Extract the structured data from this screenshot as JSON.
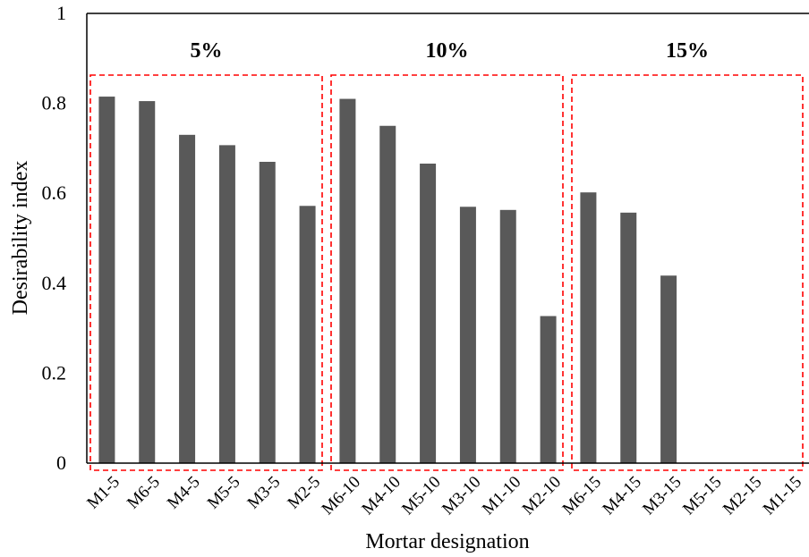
{
  "chart_data": {
    "type": "bar",
    "xlabel": "Mortar designation",
    "ylabel": "Desirability index",
    "ylim": [
      0,
      1
    ],
    "yticks": [
      "0",
      "0.2",
      "0.4",
      "0.6",
      "0.8",
      "1"
    ],
    "grid": false,
    "categories": [
      "M1-5",
      "M6-5",
      "M4-5",
      "M5-5",
      "M3-5",
      "M2-5",
      "M6-10",
      "M4-10",
      "M5-10",
      "M3-10",
      "M1-10",
      "M2-10",
      "M6-15",
      "M4-15",
      "M3-15",
      "M5-15",
      "M2-15",
      "M1-15"
    ],
    "values": [
      0.815,
      0.805,
      0.73,
      0.707,
      0.67,
      0.572,
      0.81,
      0.75,
      0.666,
      0.57,
      0.563,
      0.327,
      0.602,
      0.557,
      0.417,
      0,
      0,
      0
    ],
    "bar_color": "#595959",
    "groups": [
      {
        "label": "5%",
        "start": 0,
        "end": 5
      },
      {
        "label": "10%",
        "start": 6,
        "end": 11
      },
      {
        "label": "15%",
        "start": 12,
        "end": 17
      }
    ],
    "group_box_color": "#ff0000"
  }
}
